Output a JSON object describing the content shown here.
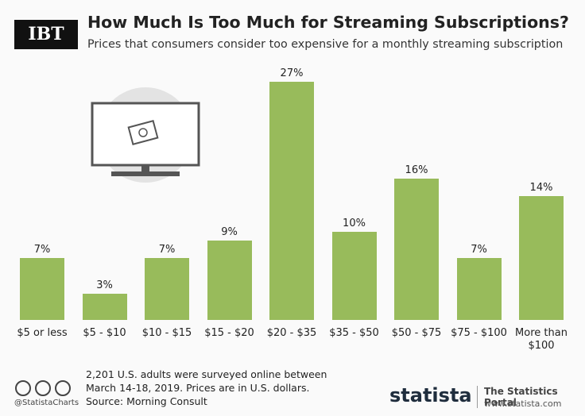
{
  "header": {
    "logo": "IBT"
  },
  "chart_data": {
    "type": "bar",
    "title": "How Much Is Too Much for Streaming Subscriptions?",
    "subtitle": "Prices that consumers consider too expensive for a monthly streaming subscription",
    "categories": [
      "$5 or less",
      "$5 - $10",
      "$10 - $15",
      "$15 - $20",
      "$20 - $35",
      "$35 - $50",
      "$50 - $75",
      "$75 - $100",
      "More than $100"
    ],
    "values": [
      7,
      3,
      7,
      9,
      27,
      10,
      16,
      7,
      14
    ],
    "value_labels": [
      "7%",
      "3%",
      "7%",
      "9%",
      "27%",
      "10%",
      "16%",
      "7%",
      "14%"
    ],
    "color": "#98bb5b"
  },
  "footer": {
    "credit": "@StatistaCharts",
    "note": [
      "2,201 U.S. adults were surveyed online between",
      "March 14-18, 2019. Prices are in U.S. dollars."
    ],
    "source": "Source: Morning Consult",
    "brand": "statista",
    "tagline": "The Statistics Portal",
    "url": "www.statista.com"
  }
}
